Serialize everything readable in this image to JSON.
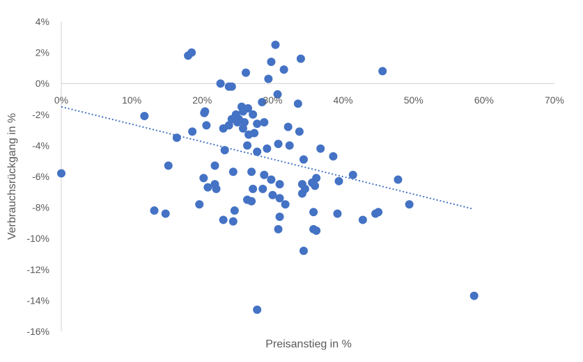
{
  "chart_data": {
    "type": "scatter",
    "xlabel": "Preisanstieg in %",
    "ylabel": "Verbrauchsrückgang in %",
    "xlim": [
      0,
      70
    ],
    "ylim": [
      -16,
      4
    ],
    "x_ticks": [
      0,
      10,
      20,
      30,
      40,
      50,
      60,
      70
    ],
    "y_ticks": [
      4,
      2,
      0,
      -2,
      -4,
      -6,
      -8,
      -10,
      -12,
      -14,
      -16
    ],
    "x_tick_labels": [
      "0%",
      "10%",
      "20%",
      "30%",
      "40%",
      "50%",
      "60%",
      "70%"
    ],
    "y_tick_labels": [
      "4%",
      "2%",
      "0%",
      "-2%",
      "-4%",
      "-6%",
      "-8%",
      "-10%",
      "-12%",
      "-14%",
      "-16%"
    ],
    "grid": false,
    "point_color": "#4472C4",
    "trendline": {
      "type": "linear",
      "style": "dotted",
      "color": "#4472C4",
      "x": [
        0,
        58.5
      ],
      "y": [
        -1.5,
        -8.1
      ]
    },
    "points": [
      [
        18.0,
        1.8
      ],
      [
        18.5,
        2.0
      ],
      [
        30.4,
        2.5
      ],
      [
        34.0,
        1.6
      ],
      [
        45.6,
        0.8
      ],
      [
        26.2,
        0.7
      ],
      [
        29.8,
        1.4
      ],
      [
        31.6,
        0.9
      ],
      [
        29.4,
        0.3
      ],
      [
        22.6,
        0.0
      ],
      [
        23.8,
        -0.2
      ],
      [
        24.2,
        -0.2
      ],
      [
        30.7,
        -0.7
      ],
      [
        33.6,
        -1.3
      ],
      [
        28.5,
        -1.2
      ],
      [
        11.8,
        -2.1
      ],
      [
        20.3,
        -1.9
      ],
      [
        20.4,
        -1.8
      ],
      [
        25.6,
        -1.5
      ],
      [
        26.5,
        -1.6
      ],
      [
        25.8,
        -1.8
      ],
      [
        24.8,
        -2.0
      ],
      [
        27.2,
        -2.0
      ],
      [
        24.2,
        -2.3
      ],
      [
        25.2,
        -2.3
      ],
      [
        25.0,
        -2.5
      ],
      [
        26.0,
        -2.5
      ],
      [
        23.8,
        -2.7
      ],
      [
        27.8,
        -2.6
      ],
      [
        28.8,
        -2.5
      ],
      [
        20.6,
        -2.7
      ],
      [
        23.0,
        -2.9
      ],
      [
        25.8,
        -2.9
      ],
      [
        27.4,
        -3.2
      ],
      [
        32.2,
        -2.8
      ],
      [
        18.6,
        -3.1
      ],
      [
        26.6,
        -3.3
      ],
      [
        33.8,
        -3.1
      ],
      [
        16.4,
        -3.5
      ],
      [
        26.4,
        -4.0
      ],
      [
        30.8,
        -3.9
      ],
      [
        32.4,
        -4.0
      ],
      [
        29.2,
        -4.2
      ],
      [
        27.8,
        -4.4
      ],
      [
        36.8,
        -4.2
      ],
      [
        23.2,
        -4.3
      ],
      [
        38.6,
        -4.7
      ],
      [
        34.4,
        -4.9
      ],
      [
        15.2,
        -5.3
      ],
      [
        21.8,
        -5.3
      ],
      [
        0.0,
        -5.8
      ],
      [
        24.4,
        -5.7
      ],
      [
        27.0,
        -5.7
      ],
      [
        28.8,
        -5.9
      ],
      [
        20.2,
        -6.1
      ],
      [
        29.8,
        -6.2
      ],
      [
        35.6,
        -6.4
      ],
      [
        31.0,
        -6.5
      ],
      [
        34.2,
        -6.5
      ],
      [
        36.2,
        -6.1
      ],
      [
        41.4,
        -5.9
      ],
      [
        39.4,
        -6.3
      ],
      [
        47.8,
        -6.2
      ],
      [
        21.8,
        -6.5
      ],
      [
        20.8,
        -6.7
      ],
      [
        22.0,
        -6.8
      ],
      [
        27.2,
        -6.8
      ],
      [
        28.6,
        -6.8
      ],
      [
        34.6,
        -6.8
      ],
      [
        36.0,
        -6.6
      ],
      [
        34.2,
        -7.1
      ],
      [
        30.0,
        -7.2
      ],
      [
        31.0,
        -7.4
      ],
      [
        26.4,
        -7.5
      ],
      [
        27.0,
        -7.6
      ],
      [
        31.8,
        -7.8
      ],
      [
        19.6,
        -7.8
      ],
      [
        49.4,
        -7.8
      ],
      [
        13.2,
        -8.2
      ],
      [
        14.8,
        -8.4
      ],
      [
        24.6,
        -8.2
      ],
      [
        35.8,
        -8.3
      ],
      [
        39.2,
        -8.4
      ],
      [
        44.6,
        -8.4
      ],
      [
        45.0,
        -8.3
      ],
      [
        23.0,
        -8.8
      ],
      [
        24.4,
        -8.9
      ],
      [
        31.0,
        -8.6
      ],
      [
        42.8,
        -8.8
      ],
      [
        30.8,
        -9.4
      ],
      [
        35.8,
        -9.4
      ],
      [
        36.2,
        -9.5
      ],
      [
        34.4,
        -10.8
      ],
      [
        58.6,
        -13.7
      ],
      [
        27.8,
        -14.6
      ]
    ]
  }
}
